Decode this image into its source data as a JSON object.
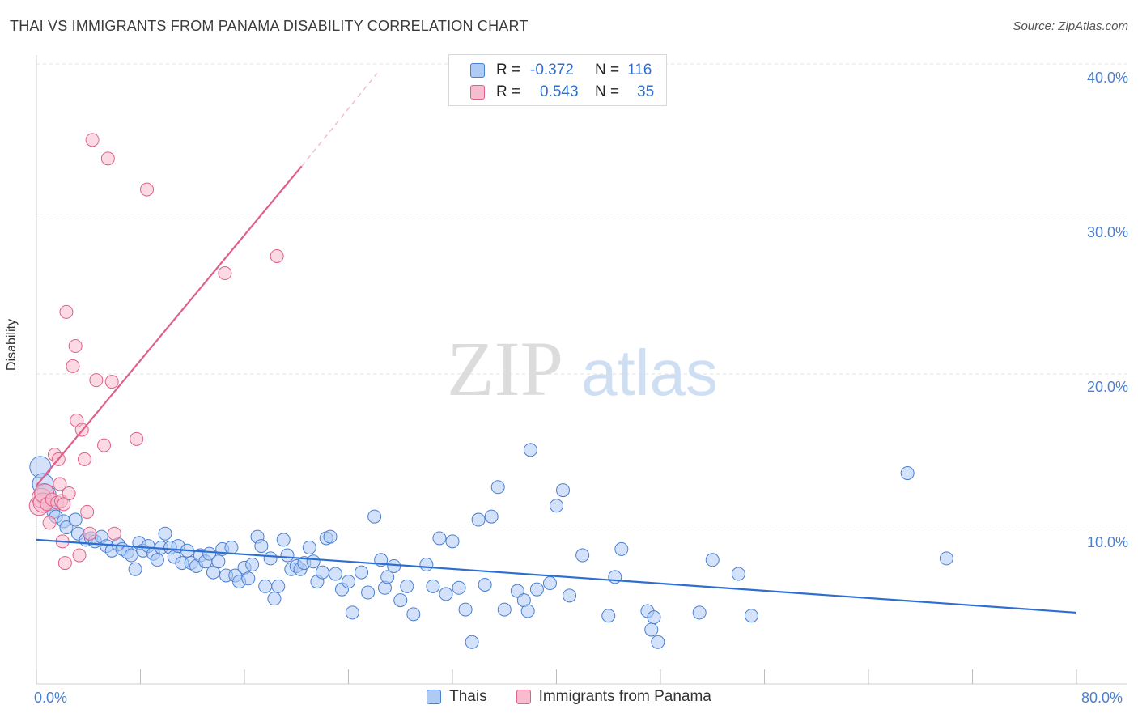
{
  "title": "THAI VS IMMIGRANTS FROM PANAMA DISABILITY CORRELATION CHART",
  "source": "Source: ZipAtlas.com",
  "watermark": {
    "zip": "ZIP",
    "atlas": "atlas"
  },
  "colors": {
    "blue": "#4a7fd0",
    "blue_fill": "#aecbf5",
    "pink": "#e0608a",
    "pink_fill": "#f7bccd"
  },
  "legend": [
    {
      "r_label": "R =",
      "r_value": "-0.372",
      "n_label": "N =",
      "n_value": "116"
    },
    {
      "r_label": "R =",
      "r_value": "0.543",
      "n_label": "N =",
      "n_value": "35"
    }
  ],
  "chart_data": {
    "type": "scatter",
    "xlabel": "",
    "ylabel": "Disability",
    "xlim": [
      0,
      80
    ],
    "ylim": [
      0,
      40
    ],
    "x_tick_labels": [
      "0.0%",
      "80.0%"
    ],
    "y_ticks": [
      {
        "value": 10,
        "label": "10.0%"
      },
      {
        "value": 20,
        "label": "20.0%"
      },
      {
        "value": 30,
        "label": "30.0%"
      },
      {
        "value": 40,
        "label": "40.0%"
      }
    ],
    "grid": true,
    "legend_position": "bottom",
    "series": [
      {
        "name": "Thais",
        "trend": {
          "x": [
            0,
            80
          ],
          "y": [
            9.3,
            4.6
          ]
        },
        "points": [
          [
            0.3,
            14.0
          ],
          [
            0.5,
            12.9
          ],
          [
            0.7,
            12.2
          ],
          [
            1.0,
            11.6
          ],
          [
            1.3,
            11.1
          ],
          [
            1.5,
            10.8
          ],
          [
            2.1,
            10.5
          ],
          [
            2.3,
            10.1
          ],
          [
            3.0,
            10.6
          ],
          [
            3.2,
            9.7
          ],
          [
            3.8,
            9.3
          ],
          [
            4.2,
            9.4
          ],
          [
            4.5,
            9.2
          ],
          [
            5.0,
            9.5
          ],
          [
            5.4,
            8.9
          ],
          [
            5.8,
            8.6
          ],
          [
            6.3,
            9.0
          ],
          [
            6.6,
            8.7
          ],
          [
            7.0,
            8.5
          ],
          [
            7.3,
            8.3
          ],
          [
            7.6,
            7.4
          ],
          [
            7.9,
            9.1
          ],
          [
            8.2,
            8.6
          ],
          [
            8.6,
            8.9
          ],
          [
            9.0,
            8.4
          ],
          [
            9.3,
            8.0
          ],
          [
            9.6,
            8.8
          ],
          [
            9.9,
            9.7
          ],
          [
            10.3,
            8.8
          ],
          [
            10.6,
            8.2
          ],
          [
            10.9,
            8.9
          ],
          [
            11.2,
            7.8
          ],
          [
            11.6,
            8.6
          ],
          [
            11.9,
            7.8
          ],
          [
            12.3,
            7.6
          ],
          [
            12.6,
            8.3
          ],
          [
            13.0,
            7.9
          ],
          [
            13.3,
            8.4
          ],
          [
            13.6,
            7.2
          ],
          [
            14.0,
            7.9
          ],
          [
            14.3,
            8.7
          ],
          [
            14.6,
            7.0
          ],
          [
            15.0,
            8.8
          ],
          [
            15.3,
            7.0
          ],
          [
            15.6,
            6.6
          ],
          [
            16.0,
            7.5
          ],
          [
            16.3,
            6.8
          ],
          [
            16.6,
            7.7
          ],
          [
            17.0,
            9.5
          ],
          [
            17.3,
            8.9
          ],
          [
            17.6,
            6.3
          ],
          [
            18.0,
            8.1
          ],
          [
            18.3,
            5.5
          ],
          [
            18.6,
            6.3
          ],
          [
            19.0,
            9.3
          ],
          [
            19.3,
            8.3
          ],
          [
            19.6,
            7.4
          ],
          [
            20.0,
            7.6
          ],
          [
            20.3,
            7.4
          ],
          [
            20.6,
            7.8
          ],
          [
            21.0,
            8.8
          ],
          [
            21.3,
            7.9
          ],
          [
            21.6,
            6.6
          ],
          [
            22.0,
            7.2
          ],
          [
            22.3,
            9.4
          ],
          [
            22.6,
            9.5
          ],
          [
            23.0,
            7.1
          ],
          [
            23.5,
            6.1
          ],
          [
            24.0,
            6.6
          ],
          [
            24.3,
            4.6
          ],
          [
            25.0,
            7.2
          ],
          [
            25.5,
            5.9
          ],
          [
            26.0,
            10.8
          ],
          [
            26.5,
            8.0
          ],
          [
            26.8,
            6.2
          ],
          [
            27.0,
            6.9
          ],
          [
            27.5,
            7.6
          ],
          [
            28.0,
            5.4
          ],
          [
            28.5,
            6.3
          ],
          [
            29.0,
            4.5
          ],
          [
            30.0,
            7.7
          ],
          [
            30.5,
            6.3
          ],
          [
            31.0,
            9.4
          ],
          [
            31.5,
            5.8
          ],
          [
            32.0,
            9.2
          ],
          [
            32.5,
            6.2
          ],
          [
            33.0,
            4.8
          ],
          [
            33.5,
            2.7
          ],
          [
            34.5,
            6.4
          ],
          [
            35.0,
            10.8
          ],
          [
            35.5,
            12.7
          ],
          [
            36.0,
            4.8
          ],
          [
            37.0,
            6.0
          ],
          [
            37.5,
            5.4
          ],
          [
            37.8,
            4.7
          ],
          [
            38.0,
            15.1
          ],
          [
            38.5,
            6.1
          ],
          [
            39.5,
            6.5
          ],
          [
            40.0,
            11.5
          ],
          [
            40.5,
            12.5
          ],
          [
            41.0,
            5.7
          ],
          [
            42.0,
            8.3
          ],
          [
            44.0,
            4.4
          ],
          [
            45.0,
            8.7
          ],
          [
            47.0,
            4.7
          ],
          [
            47.3,
            3.5
          ],
          [
            47.5,
            4.3
          ],
          [
            47.8,
            2.7
          ],
          [
            51.0,
            4.6
          ],
          [
            54.0,
            7.1
          ],
          [
            55.0,
            4.4
          ],
          [
            67.0,
            13.6
          ],
          [
            70.0,
            8.1
          ],
          [
            52.0,
            8.0
          ],
          [
            44.5,
            6.9
          ],
          [
            34.0,
            10.6
          ]
        ]
      },
      {
        "name": "Immigrants from Panama",
        "trend": {
          "x": [
            0,
            20.4
          ],
          "y": [
            12.8,
            33.4
          ]
        },
        "trend_dashed": {
          "x": [
            20.4,
            26.2
          ],
          "y": [
            33.4,
            39.4
          ]
        },
        "points": [
          [
            0.2,
            11.5
          ],
          [
            0.4,
            12.0
          ],
          [
            0.5,
            11.7
          ],
          [
            0.6,
            12.3
          ],
          [
            0.8,
            11.6
          ],
          [
            1.0,
            10.4
          ],
          [
            1.2,
            11.9
          ],
          [
            1.4,
            14.8
          ],
          [
            1.6,
            11.7
          ],
          [
            1.7,
            14.5
          ],
          [
            1.8,
            12.9
          ],
          [
            1.9,
            11.8
          ],
          [
            2.0,
            9.2
          ],
          [
            2.1,
            11.6
          ],
          [
            2.2,
            7.8
          ],
          [
            2.3,
            24.0
          ],
          [
            2.5,
            12.3
          ],
          [
            2.8,
            20.5
          ],
          [
            3.0,
            21.8
          ],
          [
            3.1,
            17.0
          ],
          [
            3.3,
            8.3
          ],
          [
            3.5,
            16.4
          ],
          [
            3.7,
            14.5
          ],
          [
            3.9,
            11.1
          ],
          [
            4.1,
            9.7
          ],
          [
            4.3,
            35.1
          ],
          [
            4.6,
            19.6
          ],
          [
            5.2,
            15.4
          ],
          [
            5.5,
            33.9
          ],
          [
            5.8,
            19.5
          ],
          [
            6.0,
            9.7
          ],
          [
            7.7,
            15.8
          ],
          [
            8.5,
            31.9
          ],
          [
            14.5,
            26.5
          ],
          [
            18.5,
            27.6
          ]
        ]
      }
    ]
  }
}
